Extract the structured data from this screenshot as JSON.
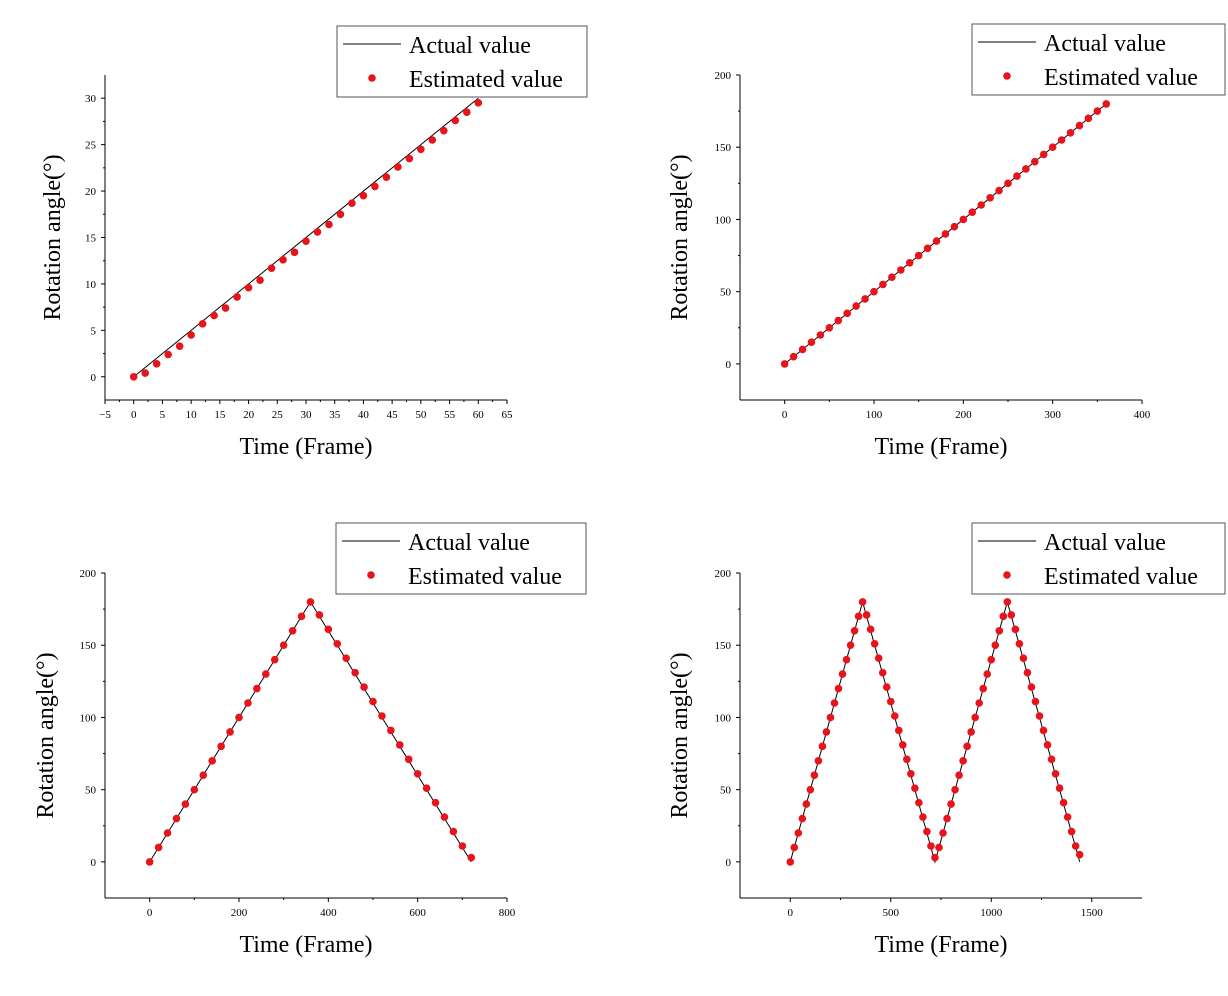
{
  "chart_data": [
    {
      "type": "scatter",
      "xlabel": "Time (Frame)",
      "ylabel": "Rotation angle(°)",
      "xlim": [
        -5,
        65
      ],
      "ylim": [
        -2.5,
        32.5
      ],
      "xticks": [
        -5,
        0,
        5,
        10,
        15,
        20,
        25,
        30,
        35,
        40,
        45,
        50,
        55,
        60,
        65
      ],
      "yticks": [
        0,
        5,
        10,
        15,
        20,
        25,
        30
      ],
      "legend": {
        "position": "top-right"
      },
      "series": [
        {
          "name": "Actual value",
          "style": "line",
          "color": "#000000",
          "x": [
            0,
            60
          ],
          "y": [
            0,
            30
          ]
        },
        {
          "name": "Estimated value",
          "style": "markers",
          "color": "#e8141b",
          "x": [
            0,
            2,
            4,
            6,
            8,
            10,
            12,
            14,
            16,
            18,
            20,
            22,
            24,
            26,
            28,
            30,
            32,
            34,
            36,
            38,
            40,
            42,
            44,
            46,
            48,
            50,
            52,
            54,
            56,
            58,
            60
          ],
          "y": [
            0,
            0.4,
            1.4,
            2.4,
            3.3,
            4.5,
            5.7,
            6.6,
            7.4,
            8.6,
            9.6,
            10.4,
            11.7,
            12.6,
            13.4,
            14.6,
            15.6,
            16.4,
            17.5,
            18.7,
            19.5,
            20.5,
            21.5,
            22.6,
            23.5,
            24.5,
            25.5,
            26.5,
            27.6,
            28.5,
            29.5
          ]
        }
      ]
    },
    {
      "type": "scatter",
      "xlabel": "Time (Frame)",
      "ylabel": "Rotation angle(°)",
      "xlim": [
        -50,
        400
      ],
      "ylim": [
        -25,
        200
      ],
      "xticks": [
        0,
        100,
        200,
        300,
        400
      ],
      "yticks": [
        0,
        50,
        100,
        150,
        200
      ],
      "legend": {
        "position": "top-right"
      },
      "series": [
        {
          "name": "Actual value",
          "style": "line",
          "color": "#000000",
          "x": [
            0,
            360
          ],
          "y": [
            0,
            180
          ]
        },
        {
          "name": "Estimated value",
          "style": "markers",
          "color": "#e8141b",
          "x": [
            0,
            10,
            20,
            30,
            40,
            50,
            60,
            70,
            80,
            90,
            100,
            110,
            120,
            130,
            140,
            150,
            160,
            170,
            180,
            190,
            200,
            210,
            220,
            230,
            240,
            250,
            260,
            270,
            280,
            290,
            300,
            310,
            320,
            330,
            340,
            350,
            360
          ],
          "y": [
            0,
            5,
            10,
            15,
            20,
            25,
            30,
            35,
            40,
            45,
            50,
            55,
            60,
            65,
            70,
            75,
            80,
            85,
            90,
            95,
            100,
            105,
            110,
            115,
            120,
            125,
            130,
            135,
            140,
            145,
            150,
            155,
            160,
            165,
            170,
            175,
            180
          ]
        }
      ]
    },
    {
      "type": "scatter",
      "xlabel": "Time (Frame)",
      "ylabel": "Rotation angle(°)",
      "xlim": [
        -100,
        800
      ],
      "ylim": [
        -25,
        200
      ],
      "xticks": [
        0,
        200,
        400,
        600,
        800
      ],
      "yticks": [
        0,
        50,
        100,
        150,
        200
      ],
      "legend": {
        "position": "top-right"
      },
      "series": [
        {
          "name": "Actual value",
          "style": "line",
          "color": "#000000",
          "x": [
            0,
            360,
            720
          ],
          "y": [
            0,
            180,
            0
          ]
        },
        {
          "name": "Estimated value",
          "style": "markers",
          "color": "#e8141b",
          "x": [
            0,
            20,
            40,
            60,
            80,
            100,
            120,
            140,
            160,
            180,
            200,
            220,
            240,
            260,
            280,
            300,
            320,
            340,
            360,
            380,
            400,
            420,
            440,
            460,
            480,
            500,
            520,
            540,
            560,
            580,
            600,
            620,
            640,
            660,
            680,
            700,
            720
          ],
          "y": [
            0,
            10,
            20,
            30,
            40,
            50,
            60,
            70,
            80,
            90,
            100,
            110,
            120,
            130,
            140,
            150,
            160,
            170,
            180,
            171,
            161,
            151,
            141,
            131,
            121,
            111,
            101,
            91,
            81,
            71,
            61,
            51,
            41,
            31,
            21,
            11,
            3
          ]
        }
      ]
    },
    {
      "type": "scatter",
      "xlabel": "Time (Frame)",
      "ylabel": "Rotation angle(°)",
      "xlim": [
        -250,
        1750
      ],
      "ylim": [
        -25,
        200
      ],
      "xticks": [
        0,
        500,
        1000,
        1500
      ],
      "yticks": [
        0,
        50,
        100,
        150,
        200
      ],
      "legend": {
        "position": "top-right"
      },
      "series": [
        {
          "name": "Actual value",
          "style": "line",
          "color": "#000000",
          "x": [
            0,
            360,
            720,
            1080,
            1440
          ],
          "y": [
            0,
            180,
            0,
            180,
            0
          ]
        },
        {
          "name": "Estimated value",
          "style": "markers",
          "color": "#e8141b",
          "x": [
            0,
            20,
            40,
            60,
            80,
            100,
            120,
            140,
            160,
            180,
            200,
            220,
            240,
            260,
            280,
            300,
            320,
            340,
            360,
            380,
            400,
            420,
            440,
            460,
            480,
            500,
            520,
            540,
            560,
            580,
            600,
            620,
            640,
            660,
            680,
            700,
            720,
            740,
            760,
            780,
            800,
            820,
            840,
            860,
            880,
            900,
            920,
            940,
            960,
            980,
            1000,
            1020,
            1040,
            1060,
            1080,
            1100,
            1120,
            1140,
            1160,
            1180,
            1200,
            1220,
            1240,
            1260,
            1280,
            1300,
            1320,
            1340,
            1360,
            1380,
            1400,
            1420,
            1440
          ],
          "y": [
            0,
            10,
            20,
            30,
            40,
            50,
            60,
            70,
            80,
            90,
            100,
            110,
            120,
            130,
            140,
            150,
            160,
            170,
            180,
            171,
            161,
            151,
            141,
            131,
            121,
            111,
            101,
            91,
            81,
            71,
            61,
            51,
            41,
            31,
            21,
            11,
            3,
            10,
            20,
            30,
            40,
            50,
            60,
            70,
            80,
            90,
            100,
            110,
            120,
            130,
            140,
            150,
            160,
            170,
            180,
            171,
            161,
            151,
            141,
            131,
            121,
            111,
            101,
            91,
            81,
            71,
            61,
            51,
            41,
            31,
            21,
            11,
            5
          ]
        }
      ]
    }
  ]
}
